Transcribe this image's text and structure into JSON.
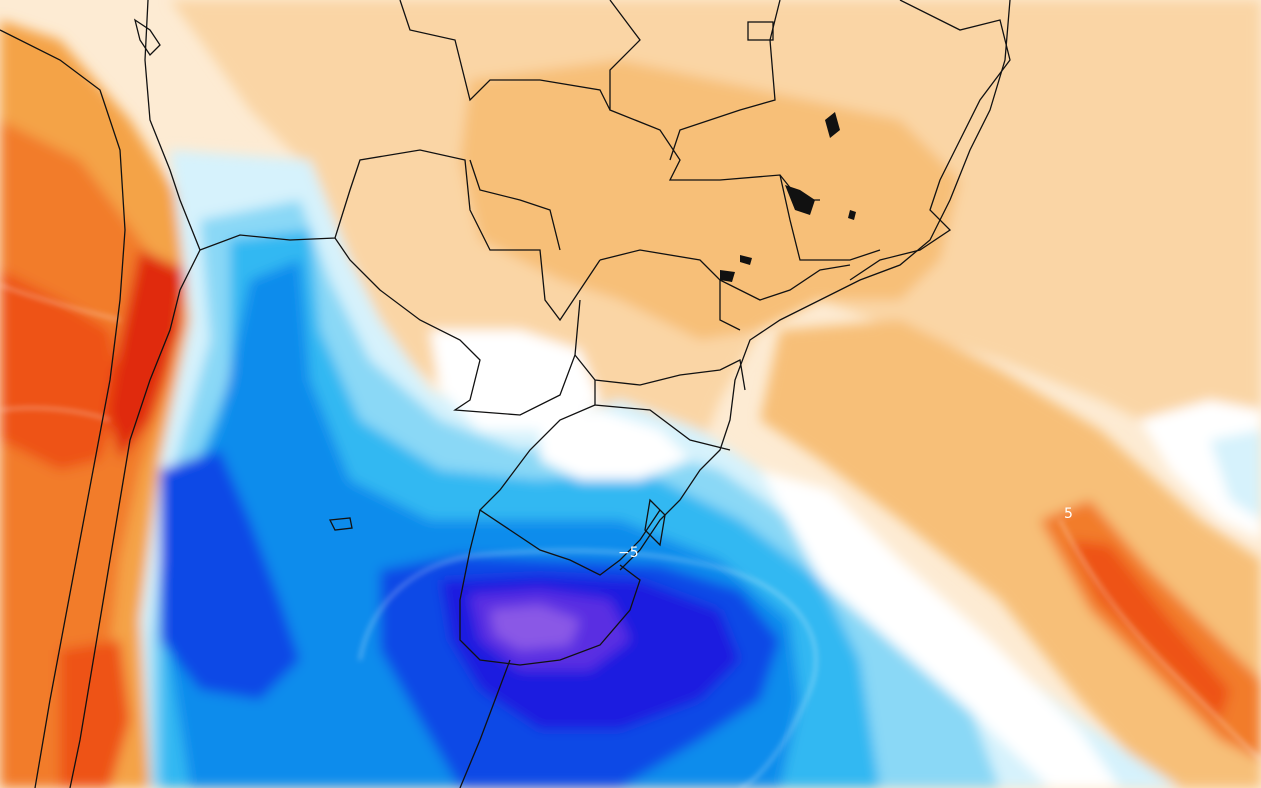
{
  "map": {
    "contour_labels": [
      {
        "id": "minus-five",
        "text": "−5"
      },
      {
        "id": "plus-five",
        "text": "5"
      }
    ],
    "colors": {
      "warm_1": "#fdebd3",
      "warm_2": "#fad5a5",
      "warm_3": "#f7bf78",
      "warm_4": "#f4a347",
      "warm_5": "#f27c2c",
      "warm_6": "#ee5218",
      "warm_7": "#e02a10",
      "neutral": "#ffffff",
      "cool_1": "#d6f2fc",
      "cool_2": "#8ad8f6",
      "cool_3": "#33b8f2",
      "cool_4": "#0a8cec",
      "cool_5": "#0a48e6",
      "cool_6": "#1a1ae0",
      "cool_7": "#5a2ee2",
      "cool_8": "#8a58e6",
      "contour_line": "#ffffff",
      "border_line": "#111111"
    }
  }
}
